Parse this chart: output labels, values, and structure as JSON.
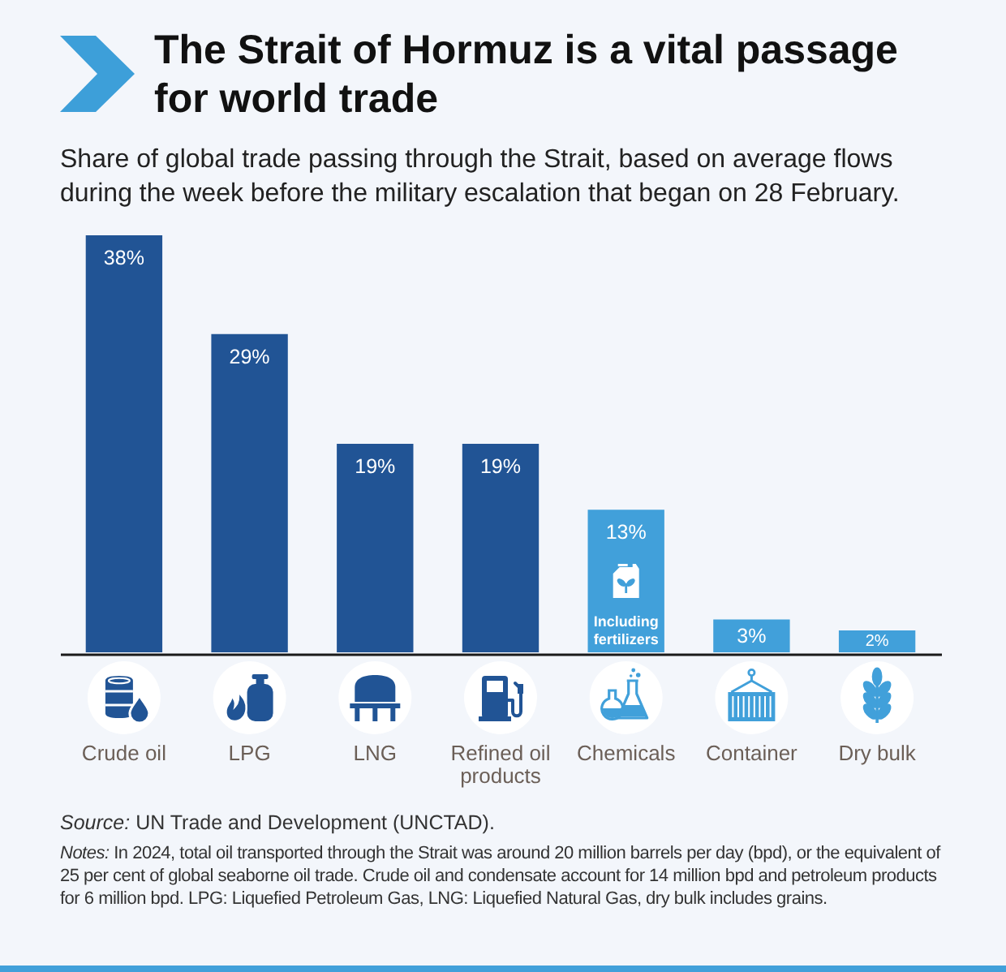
{
  "chart_data": {
    "type": "bar",
    "title": "The Strait of Hormuz is a vital passage for world trade",
    "subtitle": "Share of global trade passing through the Strait, based on average flows during the week before the military escalation that began on 28 February.",
    "categories": [
      "Crude oil",
      "LPG",
      "LNG",
      "Refined oil products",
      "Chemicals",
      "Container",
      "Dry bulk"
    ],
    "values": [
      38,
      29,
      19,
      19,
      13,
      3,
      2
    ],
    "colors": [
      "#215495",
      "#215495",
      "#215495",
      "#215495",
      "#41a0da",
      "#41a0da",
      "#41a0da"
    ],
    "value_labels": [
      "38%",
      "29%",
      "19%",
      "19%",
      "13%",
      "3%",
      "2%"
    ],
    "tick_labels": "x",
    "annotations": [
      "Including fertilizers",
      "Source: UN Trade and Development (UNCTAD).",
      "Notes: In 2024, total oil transported through the Strait was around 20 million barrels per day (bpd), or the equivalent of 25 per cent of global seaborne oil trade. Crude oil and condensate account for 14 million bpd and petroleum products for 6 million bpd. LPG: Liquefied Petroleum Gas, LNG: Liquefied Natural Gas, dry bulk includes grains."
    ]
  }
}
